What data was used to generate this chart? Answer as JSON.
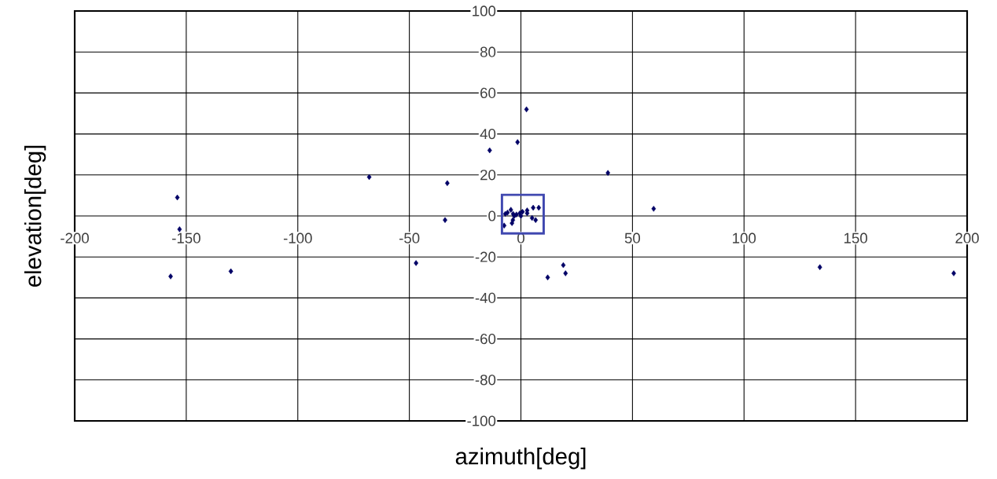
{
  "chart_data": {
    "type": "scatter",
    "xlabel": "azimuth[deg]",
    "ylabel": "elevation[deg]",
    "xlim": [
      -200,
      200
    ],
    "ylim": [
      -100,
      100
    ],
    "xticks": [
      -200,
      -150,
      -100,
      -50,
      0,
      50,
      100,
      150,
      200
    ],
    "yticks": [
      -100,
      -80,
      -60,
      -40,
      -20,
      0,
      20,
      40,
      60,
      80,
      100
    ],
    "grid": true,
    "marker": "diamond",
    "series": [
      {
        "color": "#000066",
        "x": [
          -154,
          -153,
          -157,
          -130,
          -68,
          -33,
          -34,
          -47,
          -14,
          -1.5,
          2.5,
          12,
          19,
          20,
          39,
          59.5,
          134,
          194,
          -7,
          -6,
          -4.5,
          -3.5,
          -3,
          -3.6,
          -4,
          -2,
          -0.5,
          0,
          0.7,
          2.8,
          2.8,
          5.5,
          8,
          5,
          6.6,
          -7.5
        ],
        "values": [
          9,
          -6.5,
          -29.5,
          -27,
          19,
          16,
          -2,
          -23,
          32,
          36,
          52,
          -30,
          -24,
          -28,
          21,
          3.5,
          -25,
          -28,
          1,
          1.6,
          3,
          1,
          0,
          -2,
          -3.5,
          0.7,
          1.3,
          0,
          2,
          2.7,
          1.3,
          4,
          4,
          -1,
          -2,
          -4.7
        ]
      }
    ]
  }
}
